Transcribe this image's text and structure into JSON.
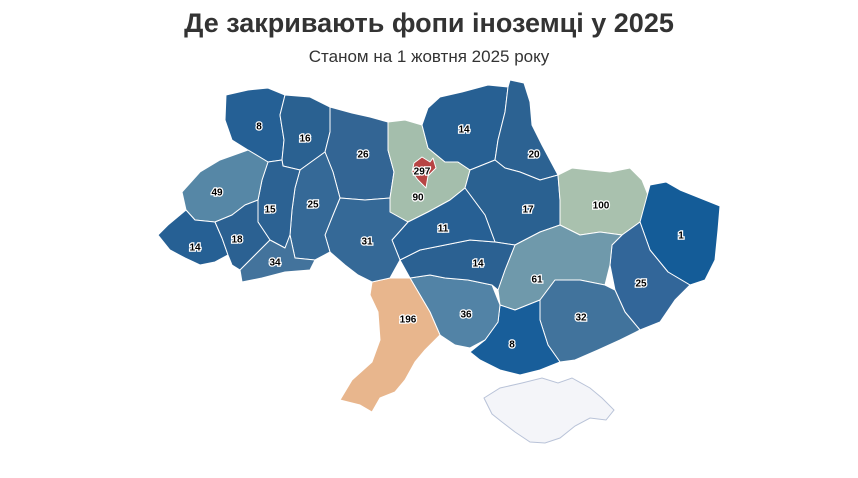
{
  "title": "Де закривають фопи іноземці у 2025",
  "subtitle": "Станом на 1 жовтня 2025 року",
  "colors": {
    "dark_blue": "#0b5694",
    "mid_blue": "#225a8d",
    "steel_blue": "#3c6e98",
    "slate_blue": "#5083a3",
    "grey_blue": "#6a95a8",
    "sage": "#a1bca9",
    "peach": "#e8b489",
    "red": "#b84040",
    "no_data": "#f4f5f9"
  },
  "regions": [
    {
      "name": "Волинська",
      "value": 8
    },
    {
      "name": "Рівненська",
      "value": 16
    },
    {
      "name": "Житомирська",
      "value": 26
    },
    {
      "name": "Київська",
      "value": 90
    },
    {
      "name": "Київ",
      "value": 297
    },
    {
      "name": "Чернігівська",
      "value": 14
    },
    {
      "name": "Сумська",
      "value": 20
    },
    {
      "name": "Полтавська",
      "value": 17
    },
    {
      "name": "Харківська",
      "value": 100
    },
    {
      "name": "Луганська",
      "value": 1
    },
    {
      "name": "Донецька",
      "value": 25
    },
    {
      "name": "Запорізька",
      "value": 32
    },
    {
      "name": "Дніпропетровська",
      "value": 61
    },
    {
      "name": "Херсонська",
      "value": 8
    },
    {
      "name": "Миколаївська",
      "value": 36
    },
    {
      "name": "Одеська",
      "value": 196
    },
    {
      "name": "Кіровоградська",
      "value": 14
    },
    {
      "name": "Черкаська",
      "value": 11
    },
    {
      "name": "Вінницька",
      "value": 31
    },
    {
      "name": "Хмельницька",
      "value": 25
    },
    {
      "name": "Тернопільська",
      "value": 15
    },
    {
      "name": "Львівська",
      "value": 49
    },
    {
      "name": "Закарпатська",
      "value": 14
    },
    {
      "name": "Івано-Франківська",
      "value": 18
    },
    {
      "name": "Чернівецька",
      "value": 34
    }
  ]
}
